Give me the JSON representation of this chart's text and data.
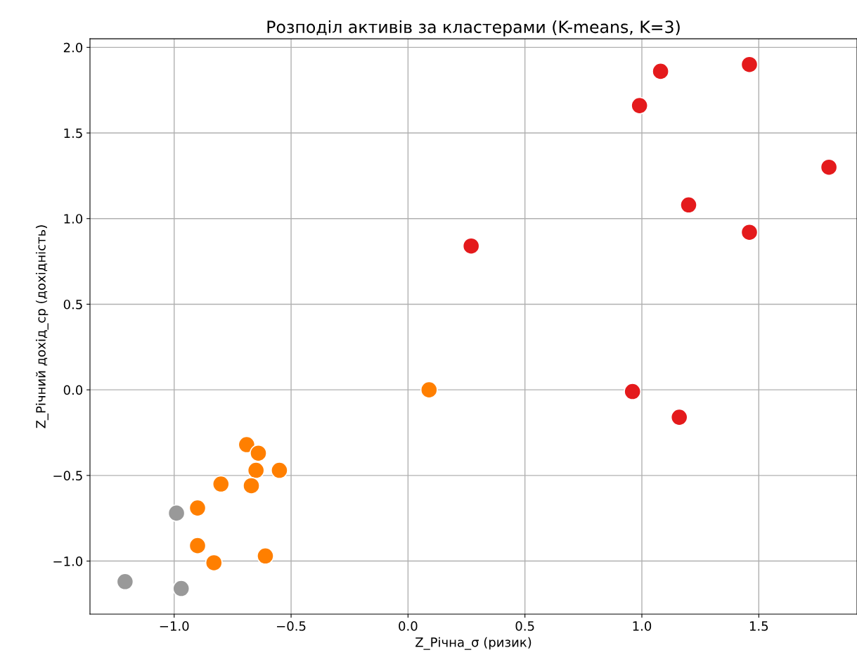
{
  "chart_data": {
    "type": "scatter",
    "title": "Розподіл активів за кластерами (K-means, K=3)",
    "xlabel": "Z_Річна_σ (ризик)",
    "ylabel": "Z_Річний дохід_ср (дохідність)",
    "xlim": [
      -1.36,
      1.92
    ],
    "ylim": [
      -1.31,
      2.05
    ],
    "xticks": [
      {
        "value": -1.0,
        "label": "−1.0"
      },
      {
        "value": -0.5,
        "label": "−0.5"
      },
      {
        "value": 0.0,
        "label": "0.0"
      },
      {
        "value": 0.5,
        "label": "0.5"
      },
      {
        "value": 1.0,
        "label": "1.0"
      },
      {
        "value": 1.5,
        "label": "1.5"
      }
    ],
    "yticks": [
      {
        "value": -1.0,
        "label": "−1.0"
      },
      {
        "value": -0.5,
        "label": "−0.5"
      },
      {
        "value": 0.0,
        "label": "0.0"
      },
      {
        "value": 0.5,
        "label": "0.5"
      },
      {
        "value": 1.0,
        "label": "1.0"
      },
      {
        "value": 1.5,
        "label": "1.5"
      },
      {
        "value": 2.0,
        "label": "2.0"
      }
    ],
    "grid": true,
    "marker": "circle",
    "series": [
      {
        "color": "#e41a1c",
        "x": [
          1.08,
          1.46,
          0.99,
          1.8,
          1.2,
          1.46,
          0.27,
          0.96,
          1.16
        ],
        "values": [
          1.86,
          1.9,
          1.66,
          1.3,
          1.08,
          0.92,
          0.84,
          -0.01,
          -0.16
        ]
      },
      {
        "color": "#ff7f00",
        "x": [
          0.09,
          -0.69,
          -0.64,
          -0.65,
          -0.55,
          -0.8,
          -0.67,
          -0.9,
          -0.9,
          -0.61,
          -0.83
        ],
        "values": [
          0.0,
          -0.32,
          -0.37,
          -0.47,
          -0.47,
          -0.55,
          -0.56,
          -0.69,
          -0.91,
          -0.97,
          -1.01
        ]
      },
      {
        "color": "#999999",
        "x": [
          -0.99,
          -1.21,
          -0.97
        ],
        "values": [
          -0.72,
          -1.12,
          -1.16
        ]
      }
    ]
  }
}
